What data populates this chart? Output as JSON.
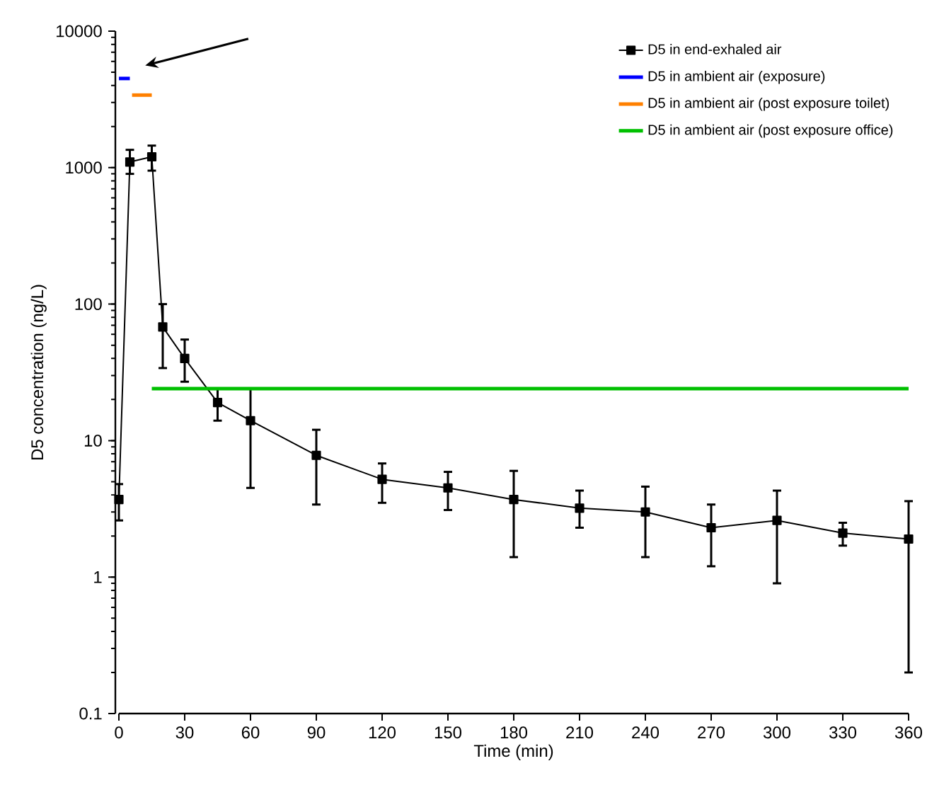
{
  "chart_data": {
    "type": "line",
    "xlabel": "Time (min)",
    "ylabel": "D5 concentration (ng/L)",
    "log": "y",
    "xlim": [
      0,
      360
    ],
    "xticks": [
      0,
      30,
      60,
      90,
      120,
      150,
      180,
      210,
      240,
      270,
      300,
      330,
      360
    ],
    "ylim": [
      0.1,
      10000
    ],
    "yticks": [
      0.1,
      1,
      10,
      100,
      1000,
      10000
    ],
    "grid": false,
    "legend": "top right",
    "marker": "square",
    "series": [
      {
        "name": "D5 in end-exhaled air",
        "color": "#000000",
        "x": [
          0,
          5,
          15,
          20,
          30,
          45,
          60,
          90,
          120,
          150,
          180,
          210,
          240,
          270,
          300,
          330,
          360
        ],
        "values": [
          3.7,
          1100,
          1200,
          68,
          40,
          19,
          14,
          7.8,
          5.2,
          4.5,
          3.7,
          3.2,
          3.0,
          2.3,
          2.6,
          2.1,
          1.9
        ],
        "errors": [
          [
            2.6,
            4.8
          ],
          [
            900,
            1350
          ],
          [
            950,
            1450
          ],
          [
            34,
            100
          ],
          [
            27,
            55
          ],
          [
            14,
            24
          ],
          [
            4.5,
            24
          ],
          [
            3.4,
            12
          ],
          [
            3.5,
            6.8
          ],
          [
            3.1,
            5.9
          ],
          [
            1.4,
            6
          ],
          [
            2.3,
            4.3
          ],
          [
            1.4,
            4.6
          ],
          [
            1.2,
            3.4
          ],
          [
            0.9,
            4.3
          ],
          [
            1.7,
            2.5
          ],
          [
            0.2,
            3.6
          ]
        ]
      },
      {
        "name": "D5 in ambient air (exposure)",
        "color": "#0000ff",
        "marker": "none",
        "x": [
          0,
          5
        ],
        "values": [
          4500,
          4500
        ]
      },
      {
        "name": "D5 in ambient air (post exposure toilet)",
        "color": "#ff8000",
        "marker": "none",
        "x": [
          6,
          15
        ],
        "values": [
          3400,
          3400
        ]
      },
      {
        "name": "D5 in ambient air (post exposure office)",
        "color": "#00c000",
        "marker": "none",
        "x": [
          15,
          360
        ],
        "values": [
          24,
          24
        ]
      }
    ]
  }
}
